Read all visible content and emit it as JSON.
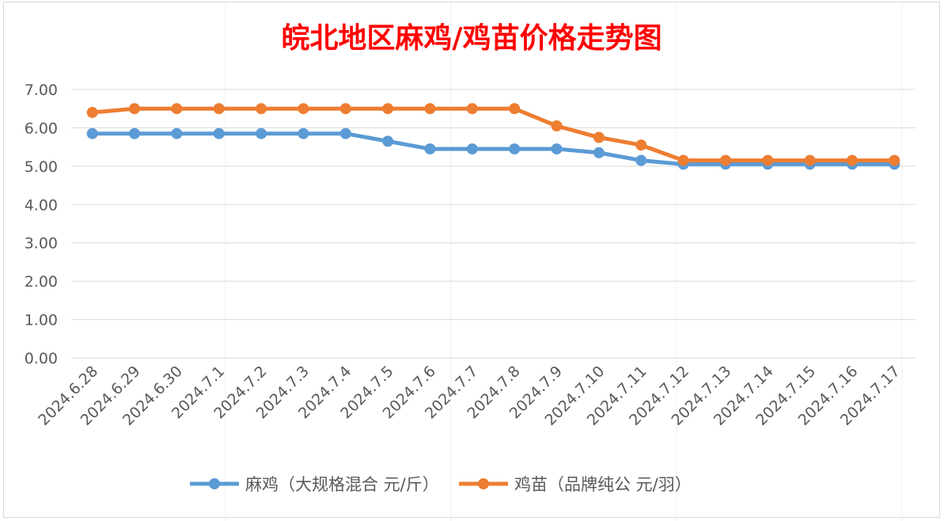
{
  "chart_data": {
    "type": "line",
    "title": "皖北地区麻鸡/鸡苗价格走势图",
    "xlabel": "",
    "ylabel": "",
    "categories": [
      "2024.6.28",
      "2024.6.29",
      "2024.6.30",
      "2024.7.1",
      "2024.7.2",
      "2024.7.3",
      "2024.7.4",
      "2024.7.5",
      "2024.7.6",
      "2024.7.7",
      "2024.7.8",
      "2024.7.9",
      "2024.7.10",
      "2024.7.11",
      "2024.7.12",
      "2024.7.13",
      "2024.7.14",
      "2024.7.15",
      "2024.7.16",
      "2024.7.17"
    ],
    "ylim": [
      0,
      7
    ],
    "yticks": [
      "0.00",
      "1.00",
      "2.00",
      "3.00",
      "4.00",
      "5.00",
      "6.00",
      "7.00"
    ],
    "grid": true,
    "legend_position": "bottom",
    "series": [
      {
        "name": "麻鸡（大规格混合 元/斤）",
        "color": "#5b9bd5",
        "values": [
          5.85,
          5.85,
          5.85,
          5.85,
          5.85,
          5.85,
          5.85,
          5.65,
          5.45,
          5.45,
          5.45,
          5.45,
          5.35,
          5.15,
          5.05,
          5.05,
          5.05,
          5.05,
          5.05,
          5.05
        ]
      },
      {
        "name": "鸡苗（品牌纯公 元/羽）",
        "color": "#ed7d31",
        "values": [
          6.4,
          6.5,
          6.5,
          6.5,
          6.5,
          6.5,
          6.5,
          6.5,
          6.5,
          6.5,
          6.5,
          6.05,
          5.75,
          5.55,
          5.15,
          5.15,
          5.15,
          5.15,
          5.15,
          5.15
        ]
      }
    ]
  },
  "colors": {
    "title": "#ff0000",
    "axis_text": "#595959",
    "gridline": "#d9d9d9"
  }
}
